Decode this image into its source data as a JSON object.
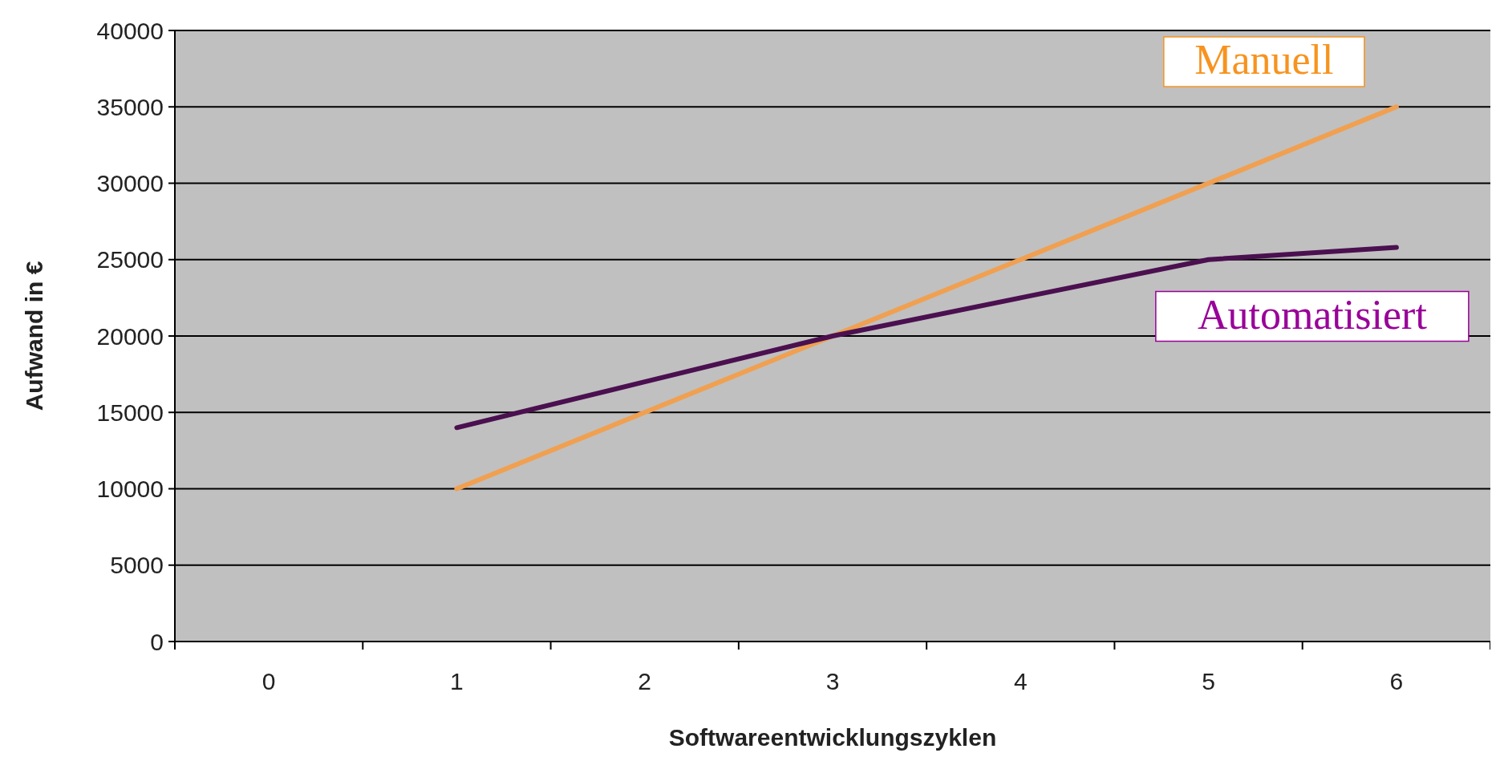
{
  "chart_data": {
    "type": "line",
    "xlabel": "Softwareentwicklungszyklen",
    "ylabel": "Aufwand in €",
    "categories": [
      "0",
      "1",
      "2",
      "3",
      "4",
      "5",
      "6"
    ],
    "series": [
      {
        "name": "Manuell",
        "color": "#f0a050",
        "values": [
          null,
          10000,
          15000,
          20000,
          25000,
          30000,
          35000
        ]
      },
      {
        "name": "Automatisiert",
        "color": "#4b1050",
        "values": [
          null,
          14000,
          17000,
          20000,
          22500,
          25000,
          25800
        ]
      }
    ],
    "ylim": [
      0,
      40000
    ],
    "yticks": [
      0,
      5000,
      10000,
      15000,
      20000,
      25000,
      30000,
      35000,
      40000
    ],
    "grid": "y",
    "legend": false,
    "marker": "none",
    "line_style": "solid"
  }
}
